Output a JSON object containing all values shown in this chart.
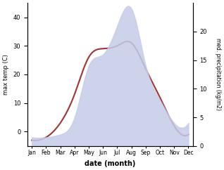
{
  "months": [
    "Jan",
    "Feb",
    "Mar",
    "Apr",
    "May",
    "Jun",
    "Jul",
    "Aug",
    "Sep",
    "Oct",
    "Nov",
    "Dec"
  ],
  "month_positions": [
    0,
    1,
    2,
    3,
    4,
    5,
    6,
    7,
    8,
    9,
    10,
    11
  ],
  "temp": [
    -3,
    -2,
    3,
    13,
    26,
    29,
    30,
    31,
    22,
    12,
    2,
    -1
  ],
  "precip": [
    1.5,
    1.5,
    2,
    5,
    14,
    16,
    21,
    24,
    14,
    8,
    4,
    4
  ],
  "temp_ylim": [
    -5,
    45
  ],
  "precip_ylim": [
    0,
    25
  ],
  "temp_color": "#a03535",
  "precip_fill_color": "#c5cce8",
  "xlabel": "date (month)",
  "ylabel_left": "max temp (C)",
  "ylabel_right": "med. precipitation (kg/m2)",
  "bg_color": "#ffffff",
  "fig_width": 3.18,
  "fig_height": 2.42,
  "dpi": 100
}
